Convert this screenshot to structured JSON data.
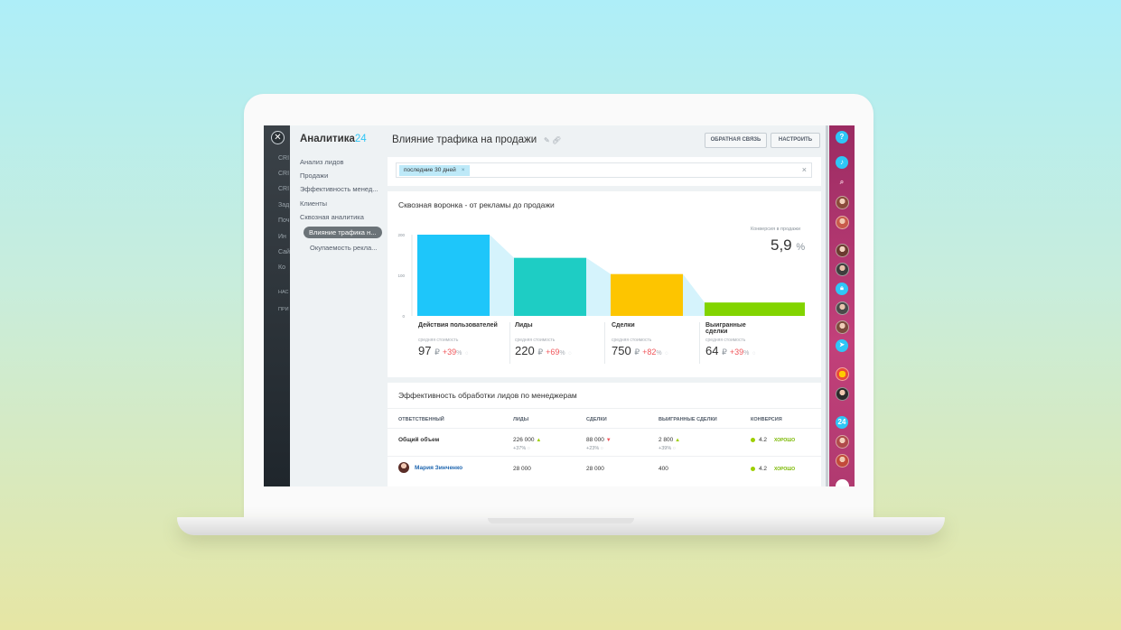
{
  "app": {
    "logo_text": "Аналитика",
    "logo_num": "24"
  },
  "left_stubs": [
    "CRI",
    "CRI",
    "CRI",
    "Зад",
    "Поч",
    "Ин",
    "Сай",
    "Ко",
    "НАС",
    "ПРИ"
  ],
  "menu": {
    "items": [
      "Анализ лидов",
      "Продажи",
      "Эффективность менед...",
      "Клиенты",
      "Сквозная аналитика"
    ],
    "active": "Влияние трафика н...",
    "sub_items": [
      "Окупаемость рекла..."
    ]
  },
  "header": {
    "title": "Влияние трафика на продажи",
    "feedback_label": "ОБРАТНАЯ СВЯЗЬ",
    "settings_label": "НАСТРОИТЬ"
  },
  "filter": {
    "chip_label": "последние 30 дней",
    "chip_close": "×",
    "clear": "×"
  },
  "funnel": {
    "title": "Сквозная воронка - от рекламы до продажи",
    "conversion_label": "Конверсия в продажи",
    "conversion_value": "5,9",
    "conversion_unit": "%",
    "stage_sub_label": "средняя стоимость",
    "currency": "₽",
    "percent": "%",
    "stages": [
      {
        "name": "Действия пользователей",
        "value": "97",
        "change": "+39"
      },
      {
        "name": "Лиды",
        "value": "220",
        "change": "+69"
      },
      {
        "name": "Сделки",
        "value": "750",
        "change": "+82"
      },
      {
        "name": "Выигранные сделки",
        "value": "64",
        "change": "+39"
      }
    ]
  },
  "chart_data": {
    "type": "bar",
    "categories": [
      "Действия пользователей",
      "Лиды",
      "Сделки",
      "Выигранные сделки"
    ],
    "values": [
      200,
      143,
      103,
      33
    ],
    "colors": [
      "#1ec6fa",
      "#1ecdc4",
      "#fdc500",
      "#82d400"
    ],
    "yticks": [
      "200",
      "100",
      "0"
    ],
    "ylim": [
      0,
      200
    ]
  },
  "efficiency": {
    "title": "Эффективность обработки лидов по менеджерам",
    "columns": [
      "ОТВЕТСТВЕННЫЙ",
      "ЛИДЫ",
      "СДЕЛКИ",
      "ВЫИГРАННЫЕ СДЕЛКИ",
      "КОНВЕРСИЯ"
    ],
    "total": {
      "label": "Общий объем",
      "leads": "226 000",
      "leads_pct": "+37%",
      "deals": "88 000",
      "deals_pct": "+23%",
      "won": "2 800",
      "won_pct": "+39%",
      "conversion": "4.2",
      "rating": "ХОРОШО"
    },
    "rows": [
      {
        "name": "Мария Зинченко",
        "leads": "28 000",
        "deals": "28 000",
        "won": "400",
        "conversion": "4.2",
        "rating": "ХОРОШО"
      }
    ]
  },
  "rightbar": {
    "help": "?",
    "badge": "24"
  }
}
